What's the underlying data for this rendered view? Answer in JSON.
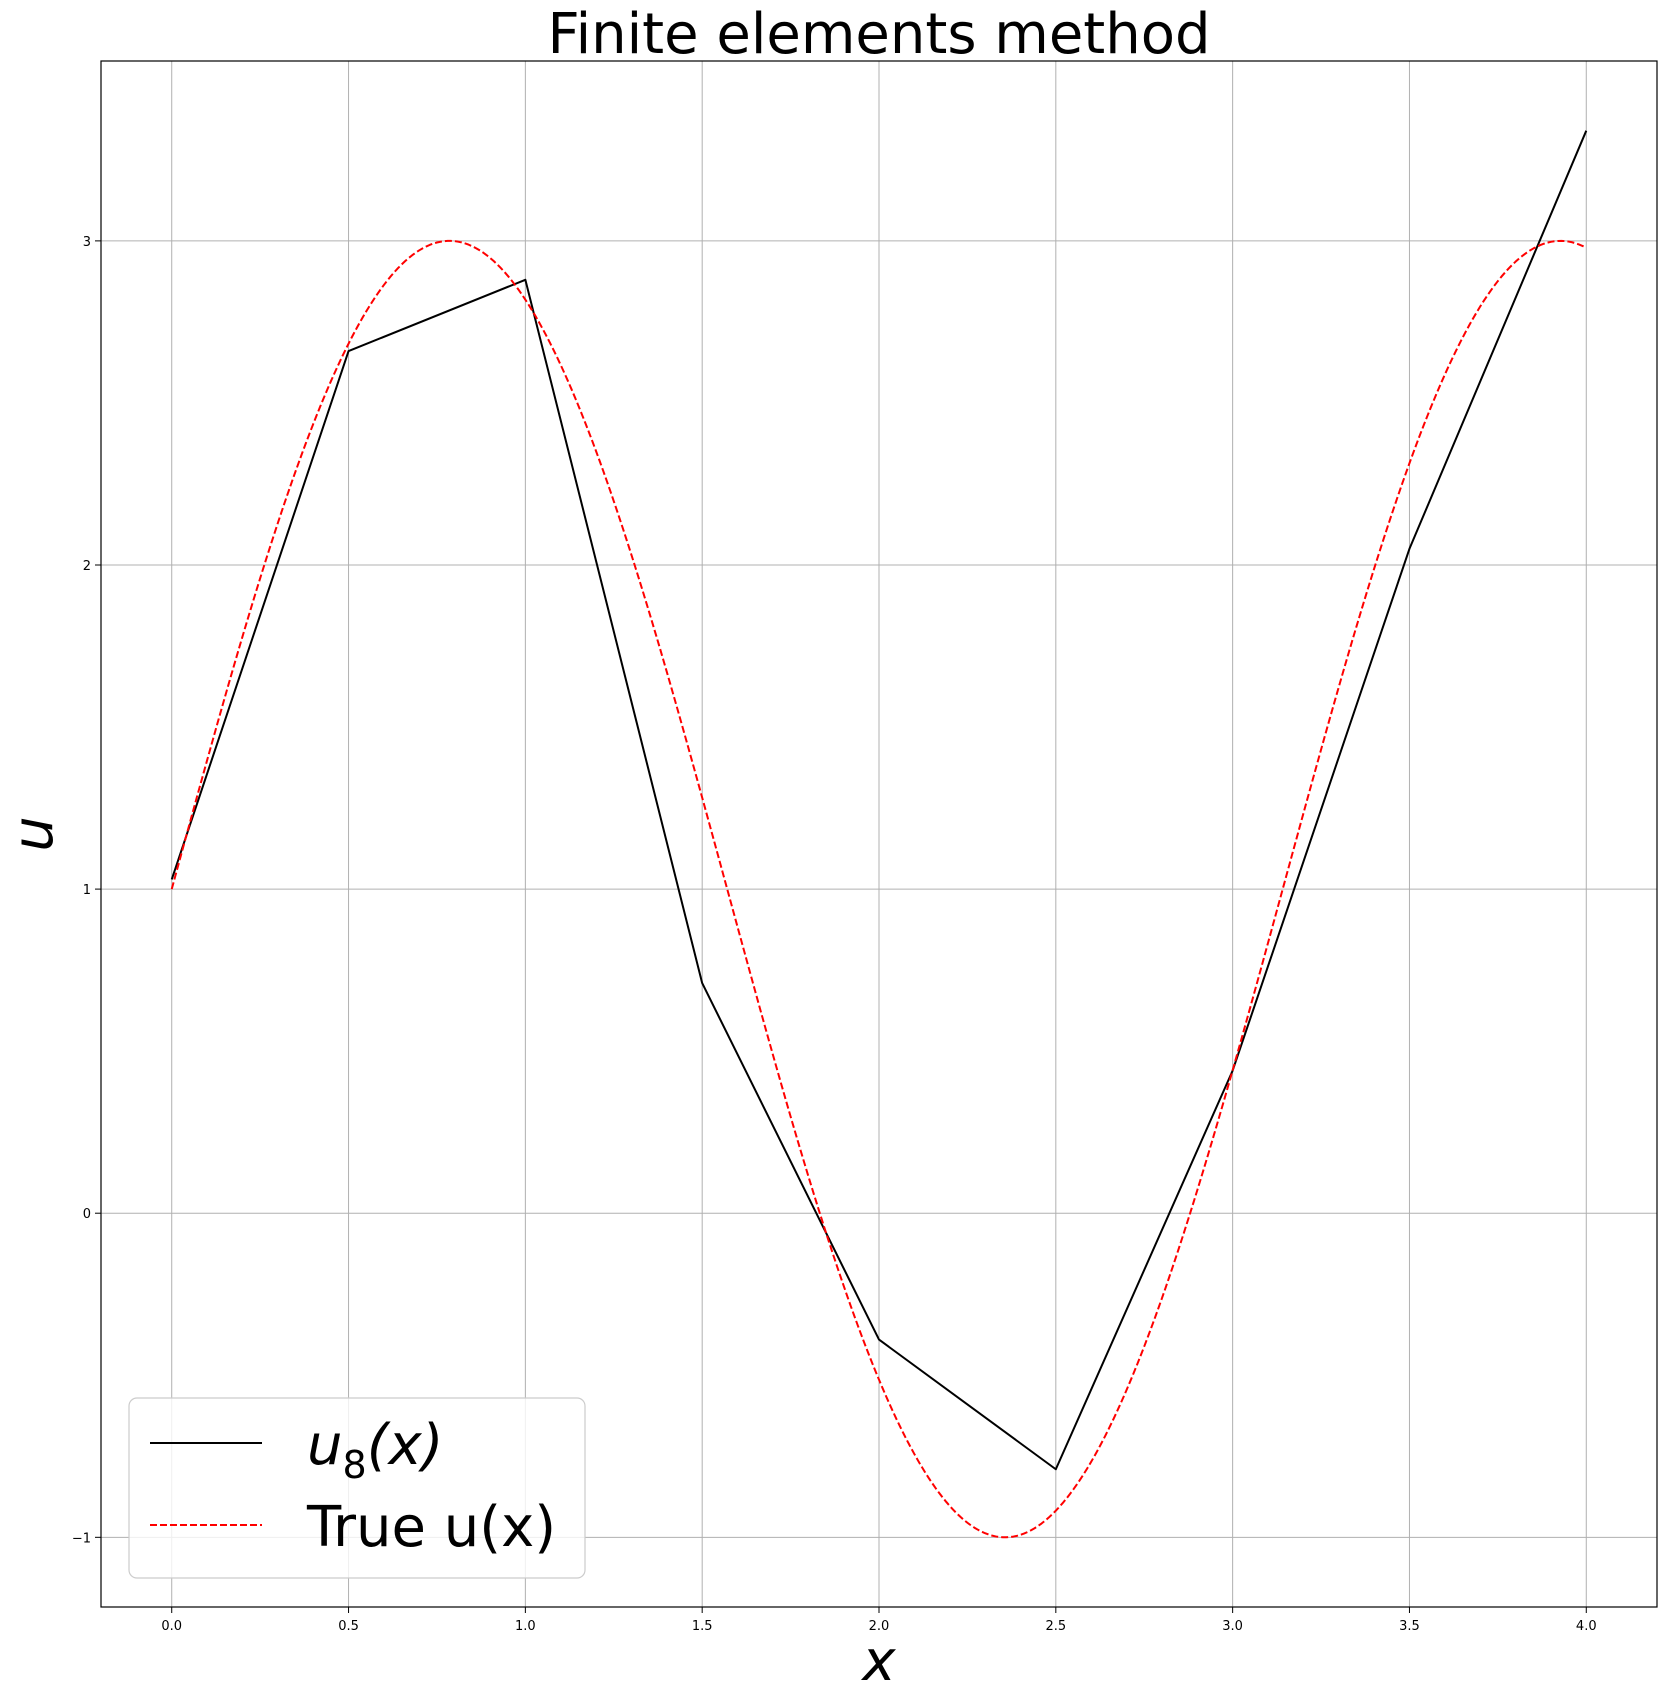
{
  "chart_data": {
    "type": "line",
    "title": "Finite elements method",
    "xlabel": "x",
    "ylabel": "u",
    "xlim": [
      -0.2,
      4.2
    ],
    "ylim": [
      -1.215,
      3.555
    ],
    "xticks": [
      0.0,
      0.5,
      1.0,
      1.5,
      2.0,
      2.5,
      3.0,
      3.5,
      4.0
    ],
    "xtick_labels": [
      "0.0",
      "0.5",
      "1.0",
      "1.5",
      "2.0",
      "2.5",
      "3.0",
      "3.5",
      "4.0"
    ],
    "yticks": [
      -1,
      0,
      1,
      2,
      3
    ],
    "ytick_labels": [
      "−1",
      "0",
      "1",
      "2",
      "3"
    ],
    "grid": true,
    "legend_position": "lower-left",
    "series": [
      {
        "name": "u8(x)",
        "legend_base": "u",
        "legend_sub": "8",
        "legend_tail": "(x)",
        "color": "#000000",
        "style": "solid",
        "x": [
          0.0,
          0.5,
          1.0,
          1.5,
          2.0,
          2.5,
          3.0,
          3.5,
          4.0
        ],
        "y": [
          1.03,
          2.66,
          2.88,
          0.71,
          -0.39,
          -0.79,
          0.44,
          2.05,
          3.34
        ]
      },
      {
        "name": "True u(x)",
        "color": "#ff0000",
        "style": "dashed",
        "function": "1 + 2*sin(2x)",
        "x_range": [
          0.0,
          4.0
        ]
      }
    ]
  }
}
